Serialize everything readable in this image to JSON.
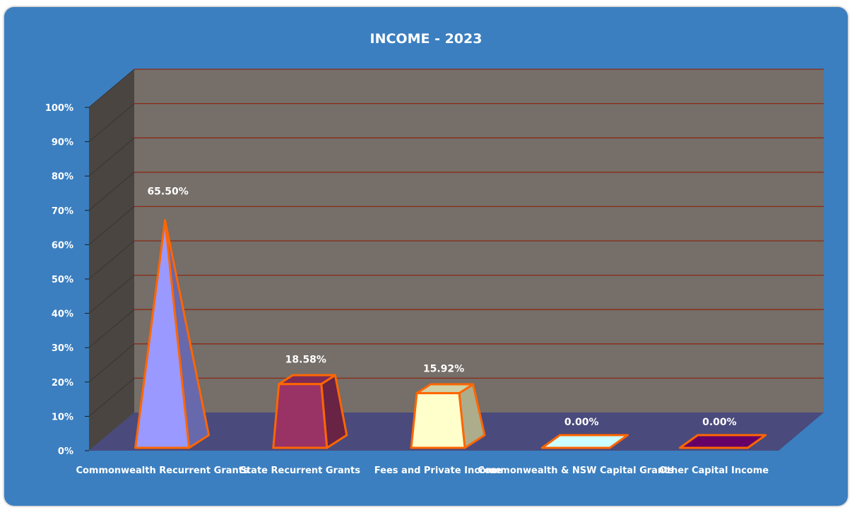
{
  "chart_data": {
    "type": "bar",
    "title": "INCOME - 2023",
    "xlabel": "",
    "ylabel": "",
    "ylim": [
      0,
      100
    ],
    "y_ticks": [
      "0%",
      "10%",
      "20%",
      "30%",
      "40%",
      "50%",
      "60%",
      "70%",
      "80%",
      "90%",
      "100%"
    ],
    "categories": [
      "Commonwealth Recurrent Grants",
      "State Recurrent Grants",
      "Fees and Private Income",
      "Commonwealth & NSW Capital Grants",
      "Other Capital Income"
    ],
    "values": [
      65.5,
      18.58,
      15.92,
      0.0,
      0.0
    ],
    "data_labels": [
      "65.50%",
      "18.58%",
      "15.92%",
      "0.00%",
      "0.00%"
    ],
    "shapes": [
      "pyramid",
      "truncated-pyramid",
      "truncated-pyramid",
      "truncated-pyramid",
      "truncated-pyramid"
    ],
    "colors": [
      "#9999ff",
      "#993366",
      "#ffffcc",
      "#ccffff",
      "#660066"
    ],
    "outline_color": "#ff6600",
    "grid": true,
    "gridline_color": "#8b2a14",
    "wall_color": "#756e69",
    "side_wall_color": "#4a4541",
    "floor_color": "#4a4a7d",
    "background_color": "#3b7fc0",
    "legend": "none"
  }
}
